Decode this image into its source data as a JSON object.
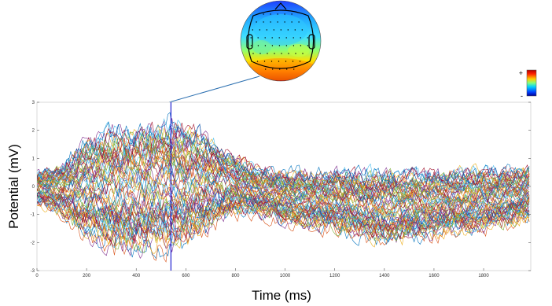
{
  "chart_data": {
    "type": "line",
    "title": "",
    "xlabel": "Time (ms)",
    "ylabel": "Potential (mV)",
    "xlim": [
      0,
      1990
    ],
    "ylim": [
      -3,
      3
    ],
    "x_ticks": [
      0,
      200,
      400,
      600,
      800,
      1000,
      1200,
      1400,
      1600,
      1800
    ],
    "y_ticks": [
      -3,
      -2,
      -1,
      0,
      1,
      2,
      3
    ],
    "channel_count": 64,
    "marker": {
      "time_ms": 540,
      "color": "#1f1fd0"
    },
    "envelope_ms": {
      "x": [
        0,
        100,
        200,
        300,
        400,
        500,
        540,
        600,
        700,
        800,
        900,
        1000,
        1200,
        1400,
        1600,
        1800,
        1990
      ],
      "upper": [
        0.6,
        0.9,
        2.1,
        2.5,
        2.6,
        2.75,
        2.9,
        2.7,
        2.0,
        1.3,
        0.8,
        0.7,
        0.75,
        0.8,
        0.75,
        0.8,
        0.8
      ],
      "lower": [
        -0.7,
        -1.2,
        -2.2,
        -2.7,
        -2.9,
        -2.7,
        -2.8,
        -2.6,
        -1.8,
        -1.2,
        -1.2,
        -1.5,
        -1.8,
        -2.3,
        -2.0,
        -1.8,
        -1.3
      ]
    },
    "colormap": {
      "plus_label": "+",
      "minus_label": "-"
    },
    "topomap": {
      "position": "top-center"
    }
  }
}
